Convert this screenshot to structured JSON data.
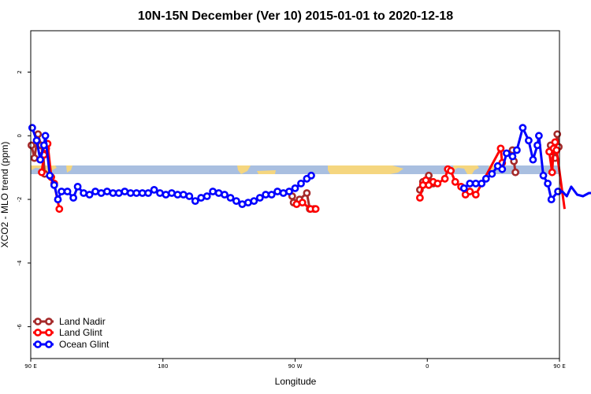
{
  "chart_data": {
    "type": "line",
    "title": "10N-15N December (Ver 10)   2015-01-01 to 2020-12-18",
    "xlabel": "Longitude",
    "ylabel": "XCO2 - MLO trend (ppm)",
    "xlim": [
      90,
      450
    ],
    "ylim": [
      -7,
      3.3
    ],
    "x_ticks": [
      {
        "value": 90,
        "label": "90 E"
      },
      {
        "value": 180,
        "label": "180"
      },
      {
        "value": 270,
        "label": "90 W"
      },
      {
        "value": 360,
        "label": "0"
      },
      {
        "value": 450,
        "label": "90 E"
      }
    ],
    "y_ticks": [
      {
        "value": 2,
        "label": "2"
      },
      {
        "value": 0,
        "label": "0"
      },
      {
        "value": -2,
        "label": "-2"
      },
      {
        "value": -4,
        "label": "-4"
      },
      {
        "value": -6,
        "label": "-6"
      }
    ],
    "grid": false,
    "legend_position": "bottom-left",
    "map_band": {
      "ymin": -1.15,
      "ymax": -0.9,
      "ocean_color": "#a9bfe0",
      "land_color": "#f5d67f"
    },
    "series": [
      {
        "name": "Land Nadir",
        "color": "#a52a2a",
        "points": [
          [
            90.5,
            -0.3
          ],
          [
            92.5,
            -0.7
          ],
          [
            95,
            0.05
          ],
          [
            97,
            -0.3
          ],
          [
            98.5,
            -0.6
          ],
          [
            99.5,
            -1.2
          ],
          [
            268,
            -1.9
          ],
          [
            269,
            -2.1
          ],
          [
            273,
            -2.0
          ],
          [
            278,
            -1.8
          ],
          [
            280,
            -2.3
          ],
          [
            283,
            -2.3
          ],
          [
            355,
            -1.7
          ],
          [
            357,
            -1.45
          ],
          [
            361,
            -1.25
          ],
          [
            364,
            -1.5
          ],
          [
            418,
            -0.45
          ],
          [
            419,
            -0.8
          ],
          [
            420,
            -1.15
          ],
          [
            444,
            -0.3
          ],
          [
            445.5,
            -0.5
          ],
          [
            447,
            -0.7
          ],
          [
            448.5,
            0.05
          ],
          [
            449.5,
            -0.35
          ]
        ]
      },
      {
        "name": "Land Glint",
        "color": "#ff0000",
        "points": [
          [
            97.5,
            -1.15
          ],
          [
            99,
            -0.6
          ],
          [
            100.5,
            -0.4
          ],
          [
            101.5,
            -0.25
          ],
          [
            104,
            -1.3
          ],
          [
            106,
            -1.5
          ],
          [
            109.5,
            -2.3
          ],
          [
            271,
            -2.15
          ],
          [
            275,
            -2.1
          ],
          [
            280.5,
            -2.3
          ],
          [
            284,
            -2.3
          ],
          [
            355,
            -1.95
          ],
          [
            357,
            -1.55
          ],
          [
            359,
            -1.4
          ],
          [
            361,
            -1.55
          ],
          [
            364,
            -1.45
          ],
          [
            367,
            -1.5
          ],
          [
            372,
            -1.35
          ],
          [
            374,
            -1.05
          ],
          [
            376,
            -1.1
          ],
          [
            379,
            -1.45
          ],
          [
            383,
            -1.6
          ],
          [
            386,
            -1.85
          ],
          [
            389,
            -1.75
          ],
          [
            393,
            -1.85
          ],
          [
            410,
            -0.4
          ],
          [
            411,
            -0.85
          ],
          [
            443,
            -0.5
          ],
          [
            445,
            -1.15
          ],
          [
            446,
            -0.4
          ],
          [
            447,
            -0.2
          ],
          [
            448,
            -0.45
          ],
          [
            453.5,
            -2.3
          ]
        ]
      },
      {
        "name": "Ocean Glint",
        "color": "#0000ff",
        "points": [
          [
            91,
            0.25
          ],
          [
            94,
            -0.15
          ],
          [
            96.5,
            -0.75
          ],
          [
            99,
            -0.3
          ],
          [
            100,
            0.0
          ],
          [
            103,
            -1.25
          ],
          [
            106,
            -1.55
          ],
          [
            108.5,
            -2.0
          ],
          [
            111,
            -1.75
          ],
          [
            115,
            -1.75
          ],
          [
            119,
            -1.95
          ],
          [
            122,
            -1.6
          ],
          [
            126,
            -1.8
          ],
          [
            130,
            -1.85
          ],
          [
            134,
            -1.75
          ],
          [
            138,
            -1.8
          ],
          [
            142,
            -1.75
          ],
          [
            146,
            -1.8
          ],
          [
            150,
            -1.8
          ],
          [
            154,
            -1.75
          ],
          [
            158,
            -1.8
          ],
          [
            162,
            -1.8
          ],
          [
            166,
            -1.8
          ],
          [
            170,
            -1.8
          ],
          [
            174,
            -1.7
          ],
          [
            178,
            -1.8
          ],
          [
            182,
            -1.85
          ],
          [
            186,
            -1.8
          ],
          [
            190,
            -1.85
          ],
          [
            194,
            -1.85
          ],
          [
            198,
            -1.9
          ],
          [
            202,
            -2.05
          ],
          [
            206,
            -1.95
          ],
          [
            210,
            -1.9
          ],
          [
            214,
            -1.75
          ],
          [
            218,
            -1.8
          ],
          [
            222,
            -1.85
          ],
          [
            226,
            -1.95
          ],
          [
            230,
            -2.05
          ],
          [
            234,
            -2.15
          ],
          [
            238,
            -2.1
          ],
          [
            242,
            -2.05
          ],
          [
            246,
            -1.95
          ],
          [
            250,
            -1.85
          ],
          [
            254,
            -1.85
          ],
          [
            258,
            -1.75
          ],
          [
            262,
            -1.8
          ],
          [
            266,
            -1.75
          ],
          [
            270,
            -1.65
          ],
          [
            274,
            -1.5
          ],
          [
            278,
            -1.35
          ],
          [
            281,
            -1.25
          ],
          [
            385,
            -1.65
          ],
          [
            389,
            -1.5
          ],
          [
            393,
            -1.5
          ],
          [
            397,
            -1.5
          ],
          [
            400,
            -1.35
          ],
          [
            404,
            -1.2
          ],
          [
            408,
            -0.95
          ],
          [
            411,
            -1.05
          ],
          [
            414,
            -0.55
          ],
          [
            418,
            -0.65
          ],
          [
            421,
            -0.45
          ],
          [
            425,
            0.25
          ],
          [
            429,
            -0.15
          ],
          [
            432,
            -0.75
          ],
          [
            435,
            -0.3
          ],
          [
            436,
            0.0
          ],
          [
            439,
            -1.25
          ],
          [
            442,
            -1.5
          ],
          [
            444.5,
            -2.0
          ],
          [
            449,
            -1.75
          ],
          [
            452,
            -1.75
          ],
          [
            455,
            -1.9
          ],
          [
            458,
            -1.6
          ],
          [
            462,
            -1.85
          ],
          [
            466,
            -1.9
          ],
          [
            470,
            -1.8
          ],
          [
            474,
            -1.8
          ],
          [
            478,
            -1.75
          ],
          [
            482,
            -1.8
          ],
          [
            486,
            -1.85
          ],
          [
            490,
            -1.8
          ],
          [
            494,
            -1.8
          ],
          [
            498,
            -1.8
          ]
        ]
      }
    ]
  }
}
